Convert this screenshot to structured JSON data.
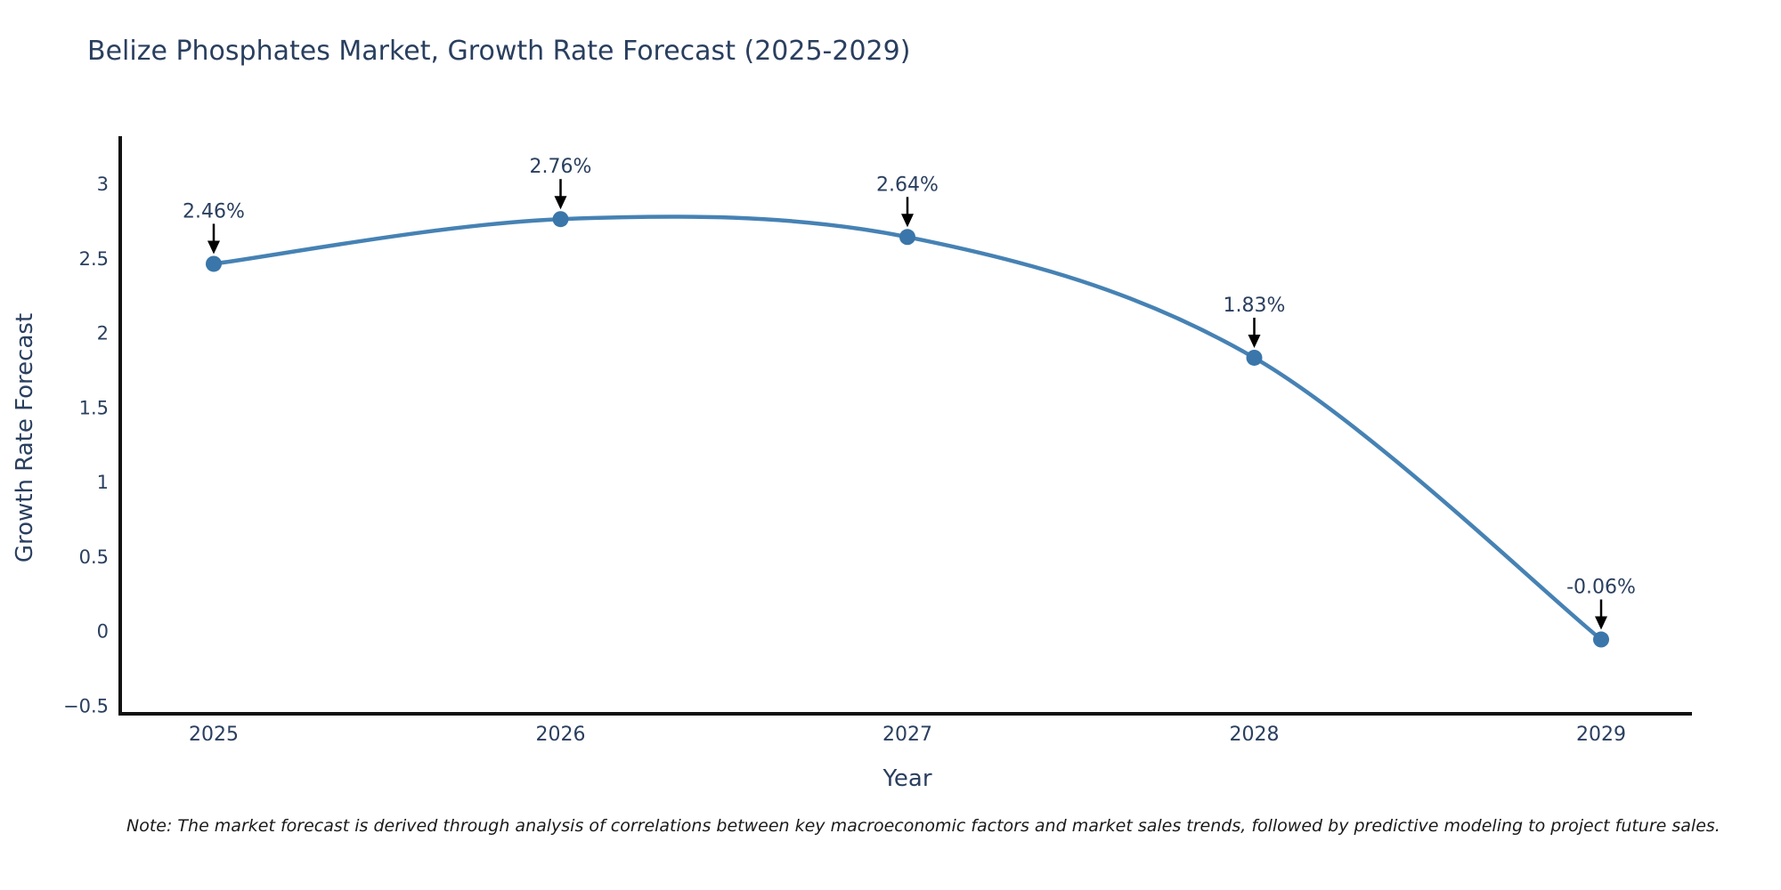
{
  "title": "Belize Phosphates Market, Growth Rate Forecast (2025-2029)",
  "note": "Note: The market forecast is derived through analysis of correlations between key macroeconomic factors and market sales trends, followed by predictive modeling to project future sales.",
  "chart_data": {
    "type": "line",
    "title": "Belize Phosphates Market, Growth Rate Forecast (2025-2029)",
    "xlabel": "Year",
    "ylabel": "Growth Rate Forecast",
    "categories": [
      "2025",
      "2026",
      "2027",
      "2028",
      "2029"
    ],
    "series": [
      {
        "name": "Growth Rate Forecast",
        "values": [
          2.46,
          2.76,
          2.64,
          1.83,
          -0.06
        ]
      }
    ],
    "point_labels": [
      "2.46%",
      "2.76%",
      "2.64%",
      "1.83%",
      "-0.06%"
    ],
    "y_ticks": [
      3,
      2.5,
      2,
      1.5,
      1,
      0.5,
      0,
      -0.5
    ],
    "y_tick_labels": [
      "3",
      "2.5",
      "2",
      "1.5",
      "1",
      "0.5",
      "0",
      "−0.5"
    ],
    "x_tick_labels": [
      "2025",
      "2026",
      "2027",
      "2028",
      "2029"
    ],
    "ylim": [
      -0.56,
      3.3
    ],
    "grid": false,
    "legend_position": "none",
    "curve": "spline",
    "colors": {
      "line": "#4682b4",
      "marker": "#3a76aa",
      "axis_line": "#111111",
      "chart_text": "#2a3f5f",
      "annotation_arrow": "#000000",
      "background": "#ffffff"
    }
  }
}
